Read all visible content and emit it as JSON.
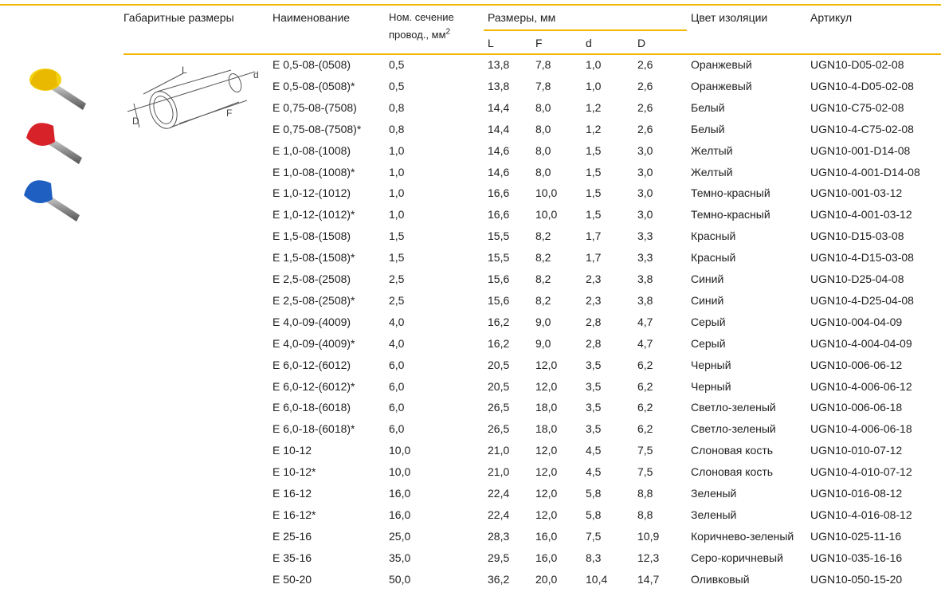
{
  "table": {
    "header": {
      "dimensions": "Габаритные размеры",
      "name": "Наименование",
      "section": "Ном. сечение",
      "section_line2": "провод., мм",
      "section_sup": "2",
      "sizes": "Размеры, мм",
      "size_cols": [
        "L",
        "F",
        "d",
        "D"
      ],
      "color": "Цвет изоляции",
      "article": "Артикул"
    },
    "drawing_labels": [
      "L",
      "d",
      "D",
      "F"
    ],
    "rows": [
      [
        "E 0,5-08-(0508)",
        "0,5",
        "13,8",
        "7,8",
        "1,0",
        "2,6",
        "Оранжевый",
        "UGN10-D05-02-08"
      ],
      [
        "E 0,5-08-(0508)*",
        "0,5",
        "13,8",
        "7,8",
        "1,0",
        "2,6",
        "Оранжевый",
        "UGN10-4-D05-02-08"
      ],
      [
        "E 0,75-08-(7508)",
        "0,8",
        "14,4",
        "8,0",
        "1,2",
        "2,6",
        "Белый",
        "UGN10-C75-02-08"
      ],
      [
        "E 0,75-08-(7508)*",
        "0,8",
        "14,4",
        "8,0",
        "1,2",
        "2,6",
        "Белый",
        "UGN10-4-C75-02-08"
      ],
      [
        "E 1,0-08-(1008)",
        "1,0",
        "14,6",
        "8,0",
        "1,5",
        "3,0",
        "Желтый",
        "UGN10-001-D14-08"
      ],
      [
        "E 1,0-08-(1008)*",
        "1,0",
        "14,6",
        "8,0",
        "1,5",
        "3,0",
        "Желтый",
        "UGN10-4-001-D14-08"
      ],
      [
        "E 1,0-12-(1012)",
        "1,0",
        "16,6",
        "10,0",
        "1,5",
        "3,0",
        "Темно-красный",
        "UGN10-001-03-12"
      ],
      [
        "E 1,0-12-(1012)*",
        "1,0",
        "16,6",
        "10,0",
        "1,5",
        "3,0",
        "Темно-красный",
        "UGN10-4-001-03-12"
      ],
      [
        "E 1,5-08-(1508)",
        "1,5",
        "15,5",
        "8,2",
        "1,7",
        "3,3",
        "Красный",
        "UGN10-D15-03-08"
      ],
      [
        "E 1,5-08-(1508)*",
        "1,5",
        "15,5",
        "8,2",
        "1,7",
        "3,3",
        "Красный",
        "UGN10-4-D15-03-08"
      ],
      [
        "E 2,5-08-(2508)",
        "2,5",
        "15,6",
        "8,2",
        "2,3",
        "3,8",
        "Синий",
        "UGN10-D25-04-08"
      ],
      [
        "E 2,5-08-(2508)*",
        "2,5",
        "15,6",
        "8,2",
        "2,3",
        "3,8",
        "Синий",
        "UGN10-4-D25-04-08"
      ],
      [
        "E 4,0-09-(4009)",
        "4,0",
        "16,2",
        "9,0",
        "2,8",
        "4,7",
        "Серый",
        "UGN10-004-04-09"
      ],
      [
        "E 4,0-09-(4009)*",
        "4,0",
        "16,2",
        "9,0",
        "2,8",
        "4,7",
        "Серый",
        "UGN10-4-004-04-09"
      ],
      [
        "E 6,0-12-(6012)",
        "6,0",
        "20,5",
        "12,0",
        "3,5",
        "6,2",
        "Черный",
        "UGN10-006-06-12"
      ],
      [
        "E 6,0-12-(6012)*",
        "6,0",
        "20,5",
        "12,0",
        "3,5",
        "6,2",
        "Черный",
        "UGN10-4-006-06-12"
      ],
      [
        "E 6,0-18-(6018)",
        "6,0",
        "26,5",
        "18,0",
        "3,5",
        "6,2",
        "Светло-зеленый",
        "UGN10-006-06-18"
      ],
      [
        "E 6,0-18-(6018)*",
        "6,0",
        "26,5",
        "18,0",
        "3,5",
        "6,2",
        "Светло-зеленый",
        "UGN10-4-006-06-18"
      ],
      [
        "E 10-12",
        "10,0",
        "21,0",
        "12,0",
        "4,5",
        "7,5",
        "Слоновая кость",
        "UGN10-010-07-12"
      ],
      [
        "E 10-12*",
        "10,0",
        "21,0",
        "12,0",
        "4,5",
        "7,5",
        "Слоновая кость",
        "UGN10-4-010-07-12"
      ],
      [
        "E 16-12",
        "16,0",
        "22,4",
        "12,0",
        "5,8",
        "8,8",
        "Зеленый",
        "UGN10-016-08-12"
      ],
      [
        "E 16-12*",
        "16,0",
        "22,4",
        "12,0",
        "5,8",
        "8,8",
        "Зеленый",
        "UGN10-4-016-08-12"
      ],
      [
        "E 25-16",
        "25,0",
        "28,3",
        "16,0",
        "7,5",
        "10,9",
        "Коричнево-зеленый",
        "UGN10-025-11-16"
      ],
      [
        "E 35-16",
        "35,0",
        "29,5",
        "16,0",
        "8,3",
        "12,3",
        "Серо-коричневый",
        "UGN10-035-16-16"
      ],
      [
        "E 50-20",
        "50,0",
        "36,2",
        "20,0",
        "10,4",
        "14,7",
        "Оливковый",
        "UGN10-050-15-20"
      ]
    ]
  }
}
